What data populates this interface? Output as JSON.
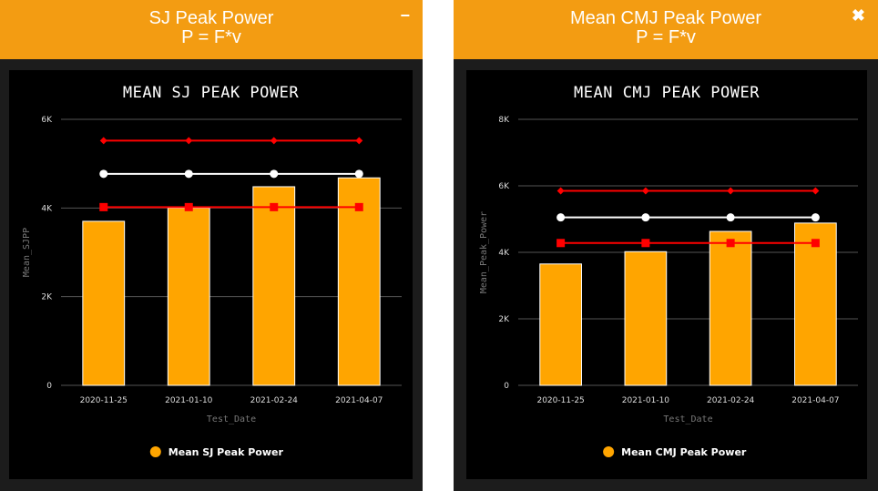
{
  "panels": [
    {
      "header": {
        "title": "SJ Peak Power",
        "formula": "P = F*v",
        "button": "−",
        "button_icon": "minimize-icon"
      },
      "chart_data": {
        "type": "bar",
        "title": "MEAN SJ PEAK POWER",
        "xlabel": "Test_Date",
        "ylabel": "Mean_SJPP",
        "categories": [
          "2020-11-25",
          "2021-01-10",
          "2021-02-24",
          "2021-04-07"
        ],
        "values": [
          3700,
          4000,
          4480,
          4680
        ],
        "ylim": [
          0,
          6000
        ],
        "yticks": [
          0,
          2000,
          4000,
          6000
        ],
        "ytick_labels": [
          "0",
          "2K",
          "4K",
          "6K"
        ],
        "bar_color": "#ffa500",
        "legend": "Mean SJ Peak Power",
        "reference_lines": [
          {
            "name": "upper",
            "value": 5520,
            "color": "#ff0000",
            "marker": "diamond"
          },
          {
            "name": "mean",
            "value": 4770,
            "color": "#ffffff",
            "marker": "circle"
          },
          {
            "name": "lower",
            "value": 4020,
            "color": "#ff0000",
            "marker": "square"
          }
        ]
      }
    },
    {
      "header": {
        "title": "Mean CMJ Peak Power",
        "formula": "P = F*v",
        "button": "✖",
        "button_icon": "close-icon"
      },
      "chart_data": {
        "type": "bar",
        "title": "MEAN CMJ PEAK POWER",
        "xlabel": "Test_Date",
        "ylabel": "Mean_Peak_Power",
        "categories": [
          "2020-11-25",
          "2021-01-10",
          "2021-02-24",
          "2021-04-07"
        ],
        "values": [
          3650,
          4020,
          4630,
          4880
        ],
        "ylim": [
          0,
          8000
        ],
        "yticks": [
          0,
          2000,
          4000,
          6000,
          8000
        ],
        "ytick_labels": [
          "0",
          "2K",
          "4K",
          "6K",
          "8K"
        ],
        "bar_color": "#ffa500",
        "legend": "Mean CMJ Peak Power",
        "reference_lines": [
          {
            "name": "upper",
            "value": 5850,
            "color": "#ff0000",
            "marker": "diamond"
          },
          {
            "name": "mean",
            "value": 5050,
            "color": "#ffffff",
            "marker": "circle"
          },
          {
            "name": "lower",
            "value": 4280,
            "color": "#ff0000",
            "marker": "square"
          }
        ]
      }
    }
  ]
}
